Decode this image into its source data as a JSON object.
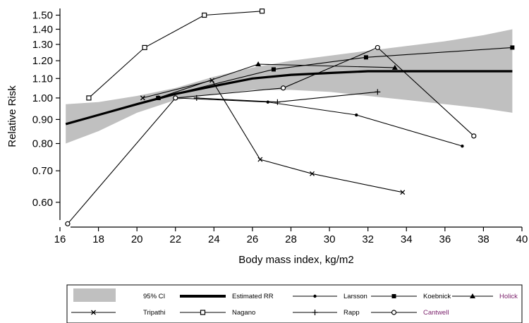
{
  "chart_data": {
    "type": "line",
    "xlabel": "Body mass index, kg/m2",
    "ylabel": "Relative Risk",
    "x_scale": "linear",
    "y_scale": "log",
    "xlim": [
      16,
      40
    ],
    "ylim": [
      0.55,
      1.55
    ],
    "x_ticks": [
      16,
      18,
      20,
      22,
      24,
      26,
      28,
      30,
      32,
      34,
      36,
      38,
      40
    ],
    "y_ticks": [
      0.6,
      0.7,
      0.8,
      0.9,
      1.0,
      1.1,
      1.2,
      1.3,
      1.4,
      1.5
    ],
    "x_tick_labels": [
      "16",
      "18",
      "20",
      "22",
      "24",
      "26",
      "28",
      "30",
      "32",
      "34",
      "36",
      "38",
      "40"
    ],
    "y_tick_labels": [
      "0.60",
      "0.70",
      "0.80",
      "0.90",
      "1.00",
      "1.10",
      "1.20",
      "1.30",
      "1.40",
      "1.50"
    ],
    "grid": false,
    "legend_placement": "bottom",
    "estimated_rr": {
      "x": [
        16.3,
        18,
        20,
        22,
        24,
        26,
        28,
        30,
        32,
        34,
        36,
        38,
        39.5
      ],
      "y": [
        0.88,
        0.92,
        0.97,
        1.02,
        1.06,
        1.1,
        1.12,
        1.13,
        1.14,
        1.14,
        1.14,
        1.14,
        1.14
      ]
    },
    "ci_band": {
      "x": [
        16.3,
        18,
        20,
        22,
        24,
        26,
        28,
        30,
        32,
        34,
        36,
        38,
        39.5
      ],
      "lower": [
        0.8,
        0.85,
        0.93,
        0.99,
        1.02,
        1.04,
        1.04,
        1.03,
        1.01,
        0.99,
        0.97,
        0.95,
        0.93
      ],
      "upper": [
        0.97,
        0.98,
        1.01,
        1.05,
        1.11,
        1.16,
        1.2,
        1.23,
        1.26,
        1.29,
        1.32,
        1.36,
        1.4
      ]
    },
    "series": [
      {
        "name": "Larsson",
        "marker": "dot",
        "x": [
          22,
          26.8,
          31.4,
          36.9
        ],
        "y": [
          1.0,
          0.98,
          0.92,
          0.79
        ]
      },
      {
        "name": "Koebnick",
        "marker": "square",
        "x": [
          21.1,
          27.1,
          31.9,
          39.5
        ],
        "y": [
          1.0,
          1.15,
          1.22,
          1.28
        ]
      },
      {
        "name": "Holick",
        "marker": "triangle",
        "x": [
          21.1,
          26.3,
          33.4
        ],
        "y": [
          1.0,
          1.18,
          1.16
        ]
      },
      {
        "name": "Tripathi",
        "marker": "x",
        "x": [
          20.3,
          23.9,
          26.4,
          29.1,
          33.8
        ],
        "y": [
          1.0,
          1.09,
          0.74,
          0.69,
          0.63
        ]
      },
      {
        "name": "Nagano",
        "marker": "hollow-square",
        "x": [
          17.5,
          20.4,
          23.5,
          26.5
        ],
        "y": [
          1.0,
          1.28,
          1.5,
          1.53
        ]
      },
      {
        "name": "Rapp",
        "marker": "plus",
        "x": [
          23.1,
          27.3,
          32.5
        ],
        "y": [
          1.0,
          0.98,
          1.03
        ]
      },
      {
        "name": "Cantwell",
        "marker": "hollow-circle",
        "x": [
          16.4,
          22.0,
          27.6,
          32.5,
          37.5
        ],
        "y": [
          0.54,
          1.0,
          1.05,
          1.28,
          0.83
        ]
      }
    ],
    "legend": {
      "ci_label": "95% CI",
      "estimated_label": "Estimated RR",
      "labels": [
        "Larsson",
        "Koebnick",
        "Holick",
        "Tripathi",
        "Nagano",
        "Rapp",
        "Cantwell"
      ]
    }
  }
}
